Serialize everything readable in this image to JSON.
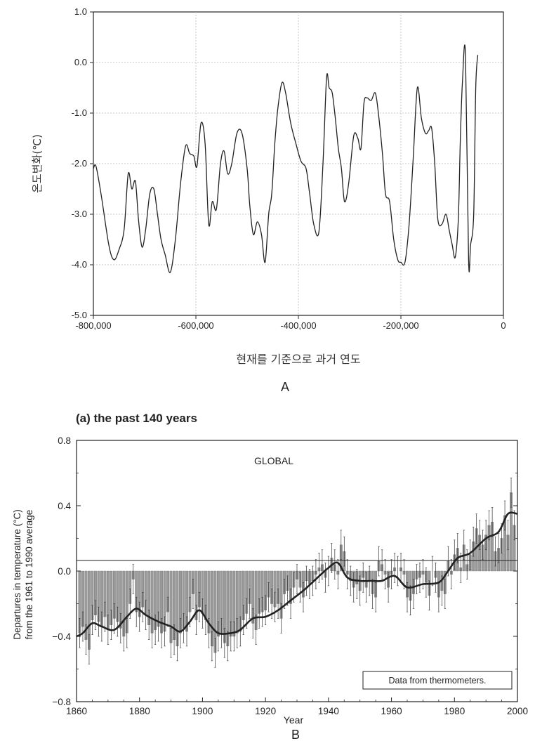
{
  "chart_data": [
    {
      "type": "line",
      "panel_label": "A",
      "title": "",
      "xlabel": "현재를 기준으로 과거 연도",
      "ylabel": "온도변화(℃)",
      "xlim": [
        -800000,
        0
      ],
      "ylim": [
        -5.0,
        1.0
      ],
      "grid": true,
      "x_ticks": [
        "-800,000",
        "-600,000",
        "-400,000",
        "-200,000",
        "0"
      ],
      "y_ticks": [
        "1.0",
        "0.0",
        "-1.0",
        "-2.0",
        "-3.0",
        "-4.0",
        "-5.0"
      ],
      "x": [
        -800000,
        -795000,
        -785000,
        -770000,
        -760000,
        -750000,
        -740000,
        -732000,
        -725000,
        -718000,
        -712000,
        -705000,
        -698000,
        -690000,
        -682000,
        -675000,
        -668000,
        -660000,
        -650000,
        -640000,
        -630000,
        -620000,
        -612000,
        -604000,
        -598000,
        -590000,
        -582000,
        -575000,
        -568000,
        -560000,
        -552000,
        -545000,
        -538000,
        -530000,
        -520000,
        -510000,
        -500000,
        -495000,
        -488000,
        -480000,
        -472000,
        -465000,
        -458000,
        -452000,
        -446000,
        -440000,
        -432000,
        -425000,
        -415000,
        -405000,
        -395000,
        -385000,
        -378000,
        -370000,
        -360000,
        -352000,
        -345000,
        -340000,
        -334000,
        -328000,
        -322000,
        -316000,
        -310000,
        -302000,
        -292000,
        -284000,
        -278000,
        -272000,
        -266000,
        -258000,
        -250000,
        -244000,
        -236000,
        -230000,
        -222000,
        -214000,
        -206000,
        -200000,
        -192000,
        -184000,
        -176000,
        -168000,
        -160000,
        -152000,
        -146000,
        -140000,
        -134000,
        -128000,
        -120000,
        -112000,
        -106000,
        -100000,
        -94000,
        -88000,
        -84000,
        -80000,
        -74000,
        -68000,
        -64000,
        -58000,
        -54000,
        -50000
      ],
      "y": [
        -2.1,
        -2.05,
        -2.6,
        -3.6,
        -3.9,
        -3.7,
        -3.3,
        -2.2,
        -2.5,
        -2.35,
        -3.1,
        -3.65,
        -3.3,
        -2.6,
        -2.5,
        -3.0,
        -3.5,
        -3.8,
        -4.15,
        -3.5,
        -2.4,
        -1.65,
        -1.8,
        -1.85,
        -2.05,
        -1.2,
        -1.6,
        -3.2,
        -2.75,
        -2.9,
        -2.0,
        -1.75,
        -2.2,
        -2.0,
        -1.4,
        -1.4,
        -2.1,
        -2.8,
        -3.4,
        -3.15,
        -3.4,
        -3.95,
        -3.0,
        -2.6,
        -1.6,
        -0.9,
        -0.4,
        -0.6,
        -1.2,
        -1.6,
        -1.95,
        -2.1,
        -2.6,
        -3.2,
        -3.35,
        -2.0,
        -0.3,
        -0.5,
        -0.6,
        -1.1,
        -1.7,
        -2.1,
        -2.75,
        -2.4,
        -1.45,
        -1.5,
        -1.7,
        -0.8,
        -0.7,
        -0.75,
        -0.6,
        -1.0,
        -1.8,
        -2.6,
        -2.75,
        -3.5,
        -3.9,
        -3.95,
        -3.95,
        -3.2,
        -1.9,
        -0.5,
        -1.1,
        -1.4,
        -1.35,
        -1.3,
        -2.0,
        -3.1,
        -3.2,
        -3.0,
        -3.3,
        -3.6,
        -3.85,
        -3.1,
        -1.5,
        -0.4,
        0.15,
        -3.9,
        -3.6,
        -3.0,
        -0.5,
        0.15
      ]
    },
    {
      "type": "bar",
      "panel_label": "B",
      "title": "(a) the past 140 years",
      "xlabel": "Year",
      "ylabel": "Departures in temperature (°C) from the 1961 to 1990 average",
      "annotations": [
        "GLOBAL",
        "Data from thermometers."
      ],
      "xlim": [
        1860,
        2000
      ],
      "ylim": [
        -0.8,
        0.8
      ],
      "x_ticks": [
        "1860",
        "1880",
        "1900",
        "1920",
        "1940",
        "1960",
        "1980",
        "2000"
      ],
      "y_ticks": [
        "0.8",
        "0.4",
        "0.0",
        "−0.4",
        "−0.8"
      ],
      "years_start": 1861,
      "values": [
        -0.38,
        -0.34,
        -0.42,
        -0.48,
        -0.3,
        -0.27,
        -0.31,
        -0.34,
        -0.28,
        -0.36,
        -0.33,
        -0.29,
        -0.31,
        -0.35,
        -0.4,
        -0.38,
        -0.2,
        -0.05,
        -0.25,
        -0.28,
        -0.22,
        -0.27,
        -0.33,
        -0.38,
        -0.36,
        -0.34,
        -0.38,
        -0.37,
        -0.25,
        -0.44,
        -0.42,
        -0.46,
        -0.38,
        -0.35,
        -0.37,
        -0.25,
        -0.14,
        -0.3,
        -0.22,
        -0.26,
        -0.3,
        -0.38,
        -0.46,
        -0.5,
        -0.4,
        -0.38,
        -0.44,
        -0.46,
        -0.4,
        -0.4,
        -0.38,
        -0.37,
        -0.3,
        -0.26,
        -0.2,
        -0.32,
        -0.36,
        -0.26,
        -0.25,
        -0.24,
        -0.16,
        -0.2,
        -0.22,
        -0.2,
        -0.29,
        -0.14,
        -0.12,
        -0.2,
        -0.1,
        -0.05,
        -0.1,
        -0.16,
        -0.06,
        -0.08,
        -0.06,
        -0.02,
        0.02,
        0.04,
        -0.04,
        0.0,
        0.08,
        0.04,
        -0.02,
        0.16,
        0.12,
        -0.02,
        -0.06,
        -0.1,
        -0.08,
        -0.12,
        -0.04,
        -0.1,
        -0.06,
        -0.14,
        -0.16,
        0.06,
        0.04,
        -0.02,
        -0.1,
        -0.02,
        0.02,
        0.0,
        0.02,
        -0.02,
        -0.16,
        -0.18,
        -0.14,
        -0.05,
        -0.04,
        -0.02,
        -0.07,
        -0.15,
        0.0,
        -0.04,
        -0.16,
        -0.12,
        -0.14,
        0.06,
        -0.02,
        0.1,
        0.14,
        0.02,
        0.16,
        0.04,
        0.1,
        0.18,
        0.26,
        0.22,
        0.16,
        0.22,
        0.28,
        0.3,
        0.12,
        0.14,
        0.2,
        0.34,
        0.22,
        0.48,
        0.28
      ],
      "smooth_x": [
        1860,
        1862,
        1865,
        1868,
        1872,
        1876,
        1879,
        1882,
        1886,
        1890,
        1893,
        1896,
        1899,
        1902,
        1905,
        1909,
        1912,
        1916,
        1920,
        1924,
        1928,
        1932,
        1936,
        1940,
        1943,
        1946,
        1950,
        1954,
        1957,
        1961,
        1965,
        1970,
        1975,
        1978,
        1981,
        1985,
        1990,
        1994,
        1997,
        2000
      ],
      "smooth_y": [
        -0.4,
        -0.38,
        -0.32,
        -0.34,
        -0.36,
        -0.28,
        -0.23,
        -0.27,
        -0.31,
        -0.34,
        -0.37,
        -0.31,
        -0.24,
        -0.32,
        -0.38,
        -0.38,
        -0.36,
        -0.29,
        -0.28,
        -0.24,
        -0.18,
        -0.12,
        -0.05,
        0.02,
        0.05,
        -0.04,
        -0.06,
        -0.06,
        -0.06,
        -0.03,
        -0.1,
        -0.08,
        -0.07,
        0.0,
        0.08,
        0.11,
        0.2,
        0.24,
        0.35,
        0.35
      ]
    }
  ]
}
